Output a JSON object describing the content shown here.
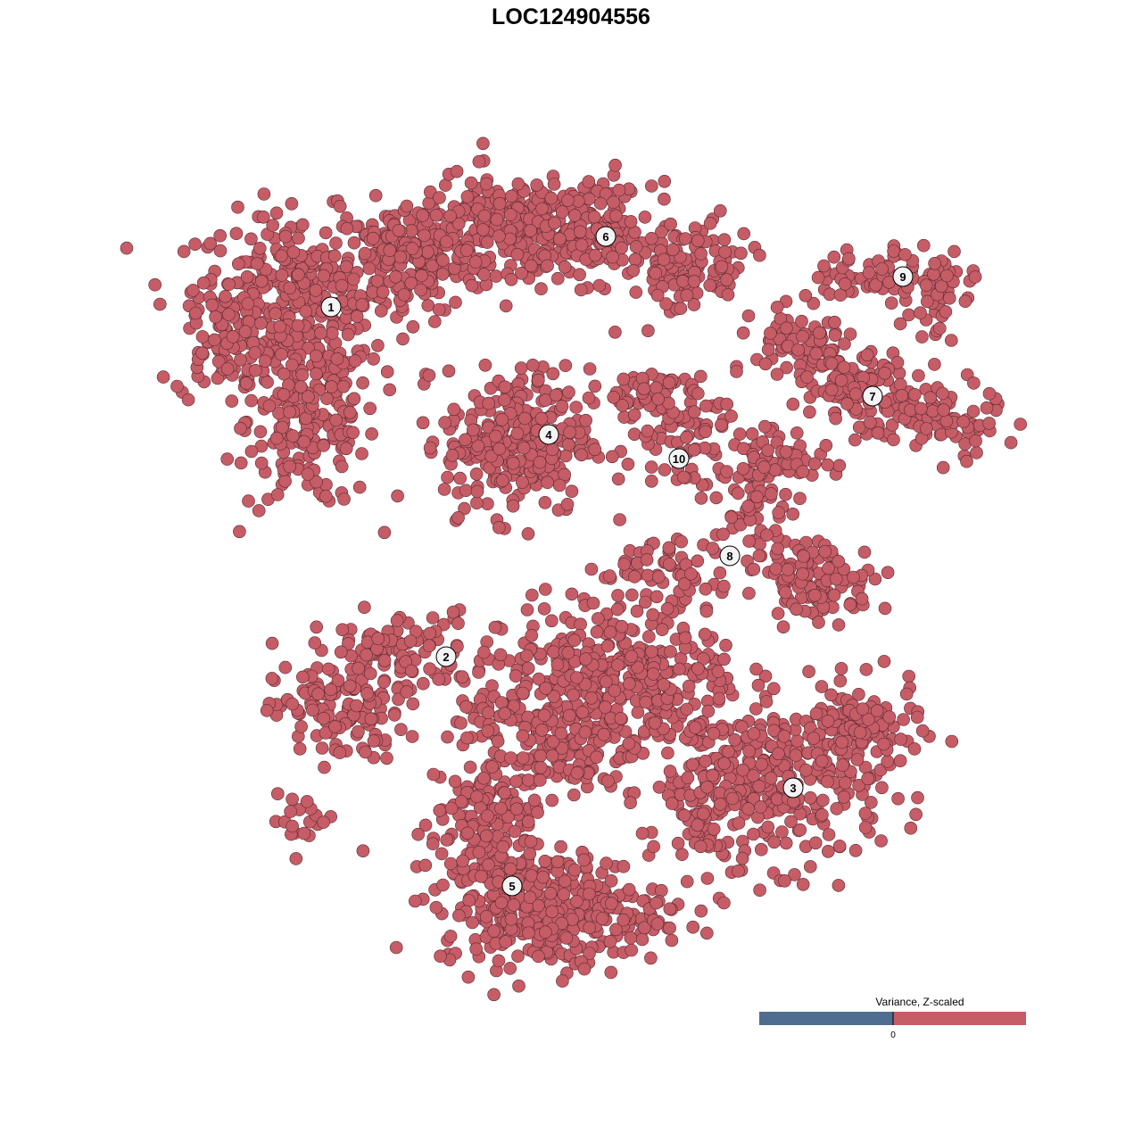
{
  "chart_data": {
    "type": "scatter",
    "title": "LOC124904556",
    "xlabel": "",
    "ylabel": "",
    "grid": false,
    "axes_visible": false,
    "xlim": [
      -46,
      46
    ],
    "ylim": [
      -45,
      46
    ],
    "point_color": "#C55C66",
    "point_outline": "#5a2a30",
    "clusters": [
      {
        "label": "1",
        "label_pos": [
          -29.4,
          29.6
        ],
        "blobs": [
          [
            -33.5,
            31,
            6,
            5,
            300
          ],
          [
            -31.5,
            17,
            4,
            5.5,
            200
          ],
          [
            -20.5,
            35,
            5,
            3.5,
            200
          ],
          [
            -41.5,
            26,
            3,
            4,
            80
          ]
        ]
      },
      {
        "label": "2",
        "label_pos": [
          -16.5,
          -9.6
        ],
        "blobs": [
          [
            -28.5,
            -16,
            4,
            3,
            120
          ],
          [
            -22.5,
            -9,
            5,
            2.5,
            100
          ],
          [
            -32.5,
            -28,
            2,
            1.5,
            20
          ]
        ]
      },
      {
        "label": "3",
        "label_pos": [
          22.4,
          -24.3
        ],
        "blobs": [
          [
            21.5,
            -24,
            6,
            5,
            250
          ],
          [
            29.5,
            -18,
            4,
            3,
            120
          ],
          [
            12.5,
            -24,
            2.5,
            5,
            100
          ]
        ]
      },
      {
        "label": "4",
        "label_pos": [
          -5.0,
          15.3
        ],
        "blobs": [
          [
            -8.5,
            14.5,
            4.5,
            4.5,
            300
          ]
        ]
      },
      {
        "label": "5",
        "label_pos": [
          -9.1,
          -35.3
        ],
        "blobs": [
          [
            -4.5,
            -38,
            7,
            3.5,
            350
          ],
          [
            -12.5,
            -29,
            3.5,
            5,
            150
          ],
          [
            -4.5,
            -16,
            6,
            6,
            300
          ],
          [
            5.5,
            -12,
            6,
            5,
            250
          ]
        ]
      },
      {
        "label": "6",
        "label_pos": [
          1.4,
          37.5
        ],
        "blobs": [
          [
            -10.5,
            39,
            5,
            3,
            200
          ],
          [
            -0.5,
            38,
            4,
            3,
            150
          ],
          [
            10.5,
            34,
            4,
            3,
            120
          ]
        ]
      },
      {
        "label": "7",
        "label_pos": [
          31.3,
          19.6
        ],
        "blobs": [
          [
            23.5,
            25,
            3,
            2.5,
            80
          ],
          [
            37.5,
            17,
            4.5,
            2.5,
            100
          ],
          [
            29.5,
            21,
            3,
            2,
            80
          ]
        ]
      },
      {
        "label": "8",
        "label_pos": [
          15.3,
          1.7
        ],
        "blobs": [
          [
            18.5,
            8,
            2.5,
            4,
            80
          ],
          [
            25.5,
            -1,
            3.5,
            2.5,
            100
          ],
          [
            9.5,
            0,
            5,
            2,
            60
          ],
          [
            21.5,
            13,
            3,
            1.5,
            40
          ]
        ]
      },
      {
        "label": "9",
        "label_pos": [
          34.7,
          33.0
        ],
        "blobs": [
          [
            33.5,
            33,
            5,
            2,
            80
          ],
          [
            38.5,
            31,
            1.5,
            3,
            30
          ]
        ]
      },
      {
        "label": "10",
        "label_pos": [
          9.6,
          12.6
        ],
        "blobs": [
          [
            9.5,
            16,
            3,
            4,
            80
          ],
          [
            5.5,
            20,
            3,
            1.5,
            40
          ]
        ]
      }
    ],
    "legend": {
      "title": "Variance, Z-scaled",
      "tick": "0",
      "placement": "bottom-right",
      "low_color": "#4F6D8F",
      "high_color": "#C55C66"
    }
  }
}
